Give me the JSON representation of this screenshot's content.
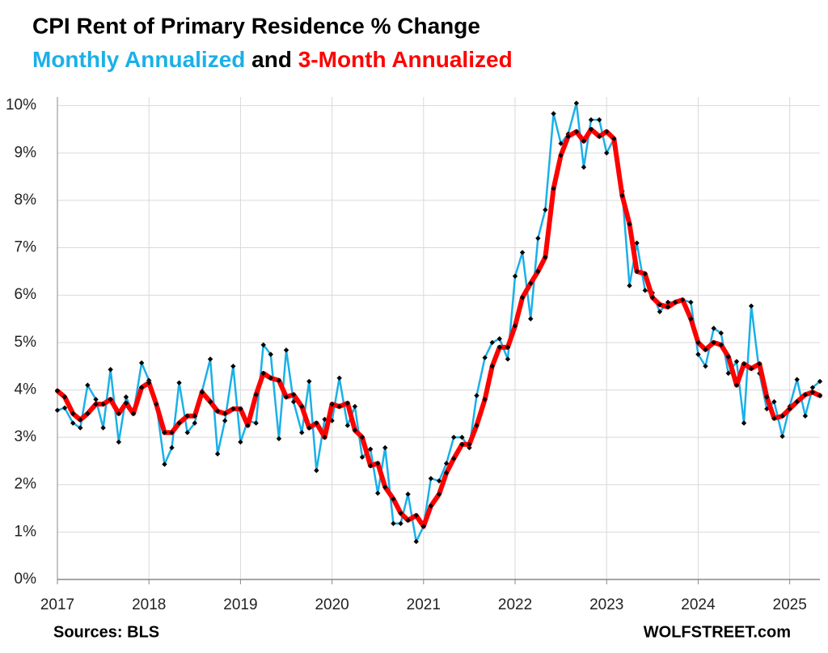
{
  "chart_data": {
    "type": "line",
    "title": "CPI Rent of Primary Residence % Change",
    "subtitle_connector": "and",
    "source": "Sources: BLS",
    "watermark": "WOLFSTREET.com",
    "grid": true,
    "marker_color": "#000000",
    "x": [
      2017,
      2017.08,
      2017.17,
      2017.25,
      2017.33,
      2017.42,
      2017.5,
      2017.58,
      2017.67,
      2017.75,
      2017.83,
      2017.92,
      2018,
      2018.08,
      2018.17,
      2018.25,
      2018.33,
      2018.42,
      2018.5,
      2018.58,
      2018.67,
      2018.75,
      2018.83,
      2018.92,
      2019,
      2019.08,
      2019.17,
      2019.25,
      2019.33,
      2019.42,
      2019.5,
      2019.58,
      2019.67,
      2019.75,
      2019.83,
      2019.92,
      2020,
      2020.08,
      2020.17,
      2020.25,
      2020.33,
      2020.42,
      2020.5,
      2020.58,
      2020.67,
      2020.75,
      2020.83,
      2020.92,
      2021,
      2021.08,
      2021.17,
      2021.25,
      2021.33,
      2021.42,
      2021.5,
      2021.58,
      2021.67,
      2021.75,
      2021.83,
      2021.92,
      2022,
      2022.08,
      2022.17,
      2022.25,
      2022.33,
      2022.42,
      2022.5,
      2022.58,
      2022.67,
      2022.75,
      2022.83,
      2022.92,
      2023,
      2023.08,
      2023.17,
      2023.25,
      2023.33,
      2023.42,
      2023.5,
      2023.58,
      2023.67,
      2023.75,
      2023.83,
      2023.92,
      2024,
      2024.08,
      2024.17,
      2024.25,
      2024.33,
      2024.42,
      2024.5,
      2024.58,
      2024.67,
      2024.75,
      2024.83,
      2024.92,
      2025,
      2025.08,
      2025.17,
      2025.25,
      2025.33
    ],
    "xlim": [
      2017,
      2025.33
    ],
    "xticks": [
      2017,
      2018,
      2019,
      2020,
      2021,
      2022,
      2023,
      2024,
      2025
    ],
    "ylim": [
      0,
      10.25
    ],
    "yticks": [
      {
        "value": 0,
        "label": "0%"
      },
      {
        "value": 1,
        "label": "1%"
      },
      {
        "value": 2,
        "label": "2%"
      },
      {
        "value": 3,
        "label": "3%"
      },
      {
        "value": 4,
        "label": "4%"
      },
      {
        "value": 5,
        "label": "5%"
      },
      {
        "value": 6,
        "label": "6%"
      },
      {
        "value": 7,
        "label": "7%"
      },
      {
        "value": 8,
        "label": "8%"
      },
      {
        "value": 9,
        "label": "9%"
      },
      {
        "value": 10,
        "label": "10%"
      }
    ],
    "series": [
      {
        "name": "Monthly Annualized",
        "color": "#1ab0e8",
        "width": 2.5,
        "values": [
          3.57,
          3.62,
          3.3,
          3.2,
          4.1,
          3.8,
          3.2,
          4.43,
          2.9,
          3.85,
          3.5,
          4.57,
          4.2,
          3.7,
          2.43,
          2.78,
          4.15,
          3.1,
          3.3,
          3.97,
          4.65,
          2.65,
          3.35,
          4.5,
          2.9,
          3.35,
          3.3,
          4.95,
          4.75,
          2.97,
          4.84,
          3.75,
          3.1,
          4.18,
          2.3,
          3.38,
          3.35,
          4.25,
          3.25,
          3.65,
          2.58,
          2.75,
          1.82,
          2.78,
          1.18,
          1.18,
          1.8,
          0.8,
          1.12,
          2.13,
          2.08,
          2.45,
          3.0,
          3.0,
          2.78,
          3.88,
          4.68,
          5.0,
          5.08,
          4.65,
          6.4,
          6.9,
          5.5,
          7.2,
          7.8,
          9.83,
          9.2,
          9.4,
          10.05,
          8.7,
          9.7,
          9.7,
          9.0,
          9.3,
          8.2,
          6.2,
          7.1,
          6.1,
          6.05,
          5.65,
          5.85,
          5.85,
          5.9,
          5.85,
          4.75,
          4.5,
          5.3,
          5.2,
          4.35,
          4.6,
          3.3,
          5.77,
          4.35,
          3.6,
          3.75,
          3.02,
          3.65,
          4.22,
          3.45,
          4.05,
          4.18
        ]
      },
      {
        "name": "3-Month Annualized",
        "color": "#ff0000",
        "width": 6,
        "values": [
          3.98,
          3.85,
          3.5,
          3.37,
          3.5,
          3.7,
          3.7,
          3.8,
          3.5,
          3.72,
          3.5,
          4.05,
          4.15,
          3.7,
          3.1,
          3.1,
          3.3,
          3.45,
          3.45,
          3.95,
          3.75,
          3.55,
          3.5,
          3.6,
          3.6,
          3.25,
          3.9,
          4.35,
          4.25,
          4.2,
          3.85,
          3.9,
          3.65,
          3.2,
          3.3,
          3.0,
          3.7,
          3.65,
          3.72,
          3.15,
          3.0,
          2.4,
          2.45,
          1.95,
          1.7,
          1.4,
          1.25,
          1.35,
          1.12,
          1.55,
          1.8,
          2.25,
          2.55,
          2.85,
          2.85,
          3.25,
          3.8,
          4.5,
          4.9,
          4.9,
          5.35,
          5.95,
          6.25,
          6.5,
          6.8,
          8.25,
          8.95,
          9.35,
          9.45,
          9.25,
          9.5,
          9.35,
          9.45,
          9.3,
          8.1,
          7.5,
          6.5,
          6.45,
          5.95,
          5.8,
          5.75,
          5.85,
          5.9,
          5.5,
          5.0,
          4.85,
          5.0,
          4.95,
          4.7,
          4.1,
          4.55,
          4.45,
          4.55,
          3.85,
          3.4,
          3.45,
          3.6,
          3.75,
          3.9,
          3.95,
          3.88
        ]
      }
    ]
  }
}
